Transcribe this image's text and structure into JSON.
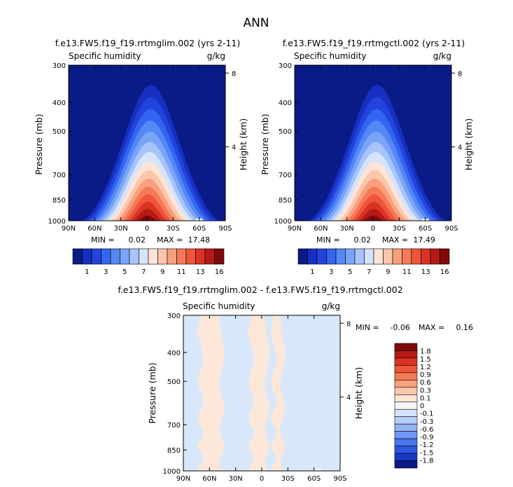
{
  "page_title": "ANN",
  "colors": {
    "seq_scale": [
      "#0a1a86",
      "#1530c0",
      "#2244dd",
      "#3366f0",
      "#5588f5",
      "#7aa4f8",
      "#a7c4fa",
      "#d6e4fb",
      "#fde4d6",
      "#fbc6ac",
      "#f8a07d",
      "#f47a56",
      "#ee553a",
      "#d93423",
      "#b51a14",
      "#7f0909"
    ],
    "diff_scale": [
      "#7f0909",
      "#b51a14",
      "#d93423",
      "#ee553a",
      "#f47a56",
      "#f8a07d",
      "#fbc6ac",
      "#fde4d6",
      "#f4f4f4",
      "#d6e4fb",
      "#b6cdf9",
      "#95b3f7",
      "#6f96f3",
      "#4a76ee",
      "#2c57e0",
      "#173ac5",
      "#0a1a86"
    ],
    "diff_pos": "#fde7d8",
    "diff_neg": "#d9e7fa"
  },
  "chart_data": [
    {
      "type": "heatmap",
      "id": "panel1",
      "title": "f.e13.FW5.f19_f19.rrtmglim.002 (yrs 2-11)",
      "variable": "Specific humidity",
      "units": "g/kg",
      "xlabel": "",
      "ylabel": "Pressure (mb)",
      "ylabel_right": "Height (km)",
      "x_ticks": [
        "90N",
        "60N",
        "30N",
        "0",
        "30S",
        "60S",
        "90S"
      ],
      "y_ticks": [
        "300",
        "400",
        "500",
        "700",
        "850",
        "1000"
      ],
      "y_ticks_right": [
        "8",
        "4"
      ],
      "min_label": "MIN =",
      "min_value": "0.02",
      "max_label": "MAX =",
      "max_value": "17.48",
      "levels": [
        "1",
        "3",
        "5",
        "7",
        "9",
        "11",
        "13",
        "16"
      ],
      "contour_levels": [
        1,
        2,
        3,
        4,
        5,
        6,
        7,
        8,
        9,
        10,
        11,
        12,
        13,
        14,
        16
      ]
    },
    {
      "type": "heatmap",
      "id": "panel2",
      "title": "f.e13.FW5.f19_f19.rrtmgctl.002 (yrs 2-11)",
      "variable": "Specific humidity",
      "units": "g/kg",
      "xlabel": "",
      "ylabel": "Pressure (mb)",
      "ylabel_right": "Height (km)",
      "x_ticks": [
        "90N",
        "60N",
        "30N",
        "0",
        "30S",
        "60S",
        "90S"
      ],
      "y_ticks": [
        "300",
        "400",
        "500",
        "700",
        "850",
        "1000"
      ],
      "y_ticks_right": [
        "8",
        "4"
      ],
      "min_label": "MIN =",
      "min_value": "0.02",
      "max_label": "MAX =",
      "max_value": "17.49",
      "levels": [
        "1",
        "3",
        "5",
        "7",
        "9",
        "11",
        "13",
        "16"
      ],
      "contour_levels": [
        1,
        2,
        3,
        4,
        5,
        6,
        7,
        8,
        9,
        10,
        11,
        12,
        13,
        14,
        16
      ]
    },
    {
      "type": "heatmap",
      "id": "panel3",
      "title": "f.e13.FW5.f19_f19.rrtmglim.002 - f.e13.FW5.f19_f19.rrtmgctl.002",
      "variable": "Specific humidity",
      "units": "g/kg",
      "xlabel": "",
      "ylabel": "Pressure (mb)",
      "ylabel_right": "Height (km)",
      "x_ticks": [
        "90N",
        "60N",
        "30N",
        "0",
        "30S",
        "60S",
        "90S"
      ],
      "y_ticks": [
        "300",
        "400",
        "500",
        "700",
        "850",
        "1000"
      ],
      "y_ticks_right": [
        "8",
        "4"
      ],
      "min_label": "MIN =",
      "min_value": "-0.06",
      "max_label": "MAX =",
      "max_value": "0.16",
      "levels": [
        "1.8",
        "1.5",
        "1.2",
        "0.9",
        "0.6",
        "0.3",
        "0.1",
        "0",
        "-0.1",
        "-0.3",
        "-0.6",
        "-0.9",
        "-1.2",
        "-1.5",
        "-1.8"
      ]
    }
  ]
}
